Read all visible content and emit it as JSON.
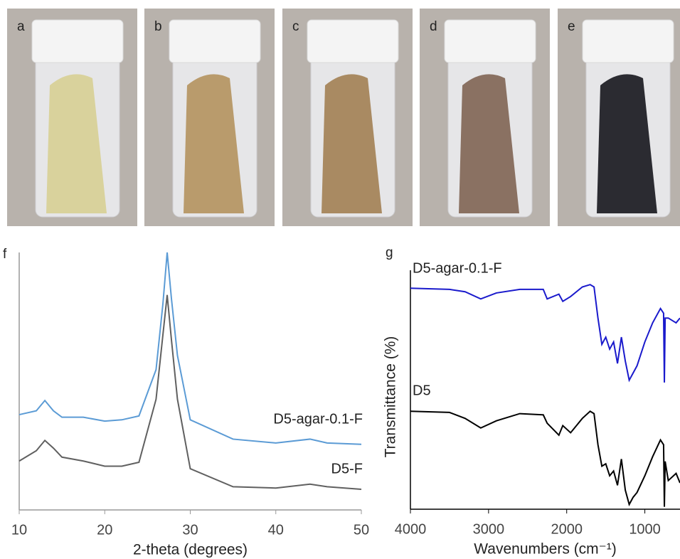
{
  "panels": [
    {
      "label": "a",
      "powder": "#d9d29c"
    },
    {
      "label": "b",
      "powder": "#b99b6c"
    },
    {
      "label": "c",
      "powder": "#a98a62"
    },
    {
      "label": "d",
      "powder": "#8a7162"
    },
    {
      "label": "e",
      "powder": "#2b2b31"
    }
  ],
  "chart_data": [
    {
      "type": "line",
      "panel_label": "f",
      "x_label": "2-theta (degrees)",
      "xlim": [
        10,
        50
      ],
      "xticks": [
        10,
        20,
        30,
        40,
        50
      ],
      "ylim": [
        0,
        100
      ],
      "x": [
        10,
        12,
        13,
        14,
        15,
        17.5,
        20,
        22,
        24,
        26,
        26.8,
        27.3,
        27.8,
        28.5,
        30,
        35,
        40,
        44,
        46,
        50
      ],
      "series": [
        {
          "name": "D5-agar-0.1-F",
          "color": "#5b9bd5",
          "values": [
            37,
            38.5,
            42.5,
            38.5,
            36,
            36,
            34.5,
            35,
            36.5,
            54.5,
            80,
            100,
            82,
            60,
            35,
            27.5,
            26,
            27.5,
            26,
            25.5
          ]
        },
        {
          "name": "D5-F",
          "color": "#606060",
          "values": [
            19,
            23,
            27,
            24,
            20.5,
            19,
            17,
            17,
            18.5,
            43,
            68,
            83.5,
            66,
            43,
            16,
            9,
            8.5,
            10,
            9,
            8
          ]
        }
      ]
    },
    {
      "type": "line",
      "panel_label": "g",
      "x_label": "Wavenumbers (cm⁻¹)",
      "y_label": "Transmittance (%)",
      "xlim": [
        4000,
        550
      ],
      "xticks": [
        4000,
        3000,
        2000,
        1000
      ],
      "ylim": [
        0,
        100
      ],
      "x": [
        4000,
        3500,
        3300,
        3100,
        2900,
        2600,
        2300,
        2250,
        2100,
        2050,
        1950,
        1800,
        1700,
        1650,
        1600,
        1550,
        1500,
        1450,
        1400,
        1350,
        1300,
        1250,
        1200,
        1150,
        1100,
        1000,
        900,
        800,
        760,
        750,
        740,
        700,
        600,
        550
      ],
      "series": [
        {
          "name": "D5-agar-0.1-F",
          "color": "#1a1acc",
          "values": [
            92.5,
            92,
            91,
            88,
            90.5,
            92,
            92,
            88,
            90,
            87,
            89,
            93,
            94,
            93,
            80,
            69,
            72,
            67,
            70,
            61,
            72,
            62,
            54,
            57,
            60,
            70,
            78,
            84,
            82,
            53,
            80,
            80,
            78,
            80
          ]
        },
        {
          "name": "D5",
          "color": "#000000",
          "values": [
            41,
            40.5,
            38,
            34,
            37,
            40,
            39.5,
            36,
            31,
            35,
            32,
            38,
            41,
            40,
            27,
            18,
            19,
            14,
            16,
            10,
            21,
            8,
            2,
            5,
            7,
            14,
            22,
            29,
            27,
            1,
            20,
            12,
            15,
            11
          ]
        }
      ]
    }
  ]
}
